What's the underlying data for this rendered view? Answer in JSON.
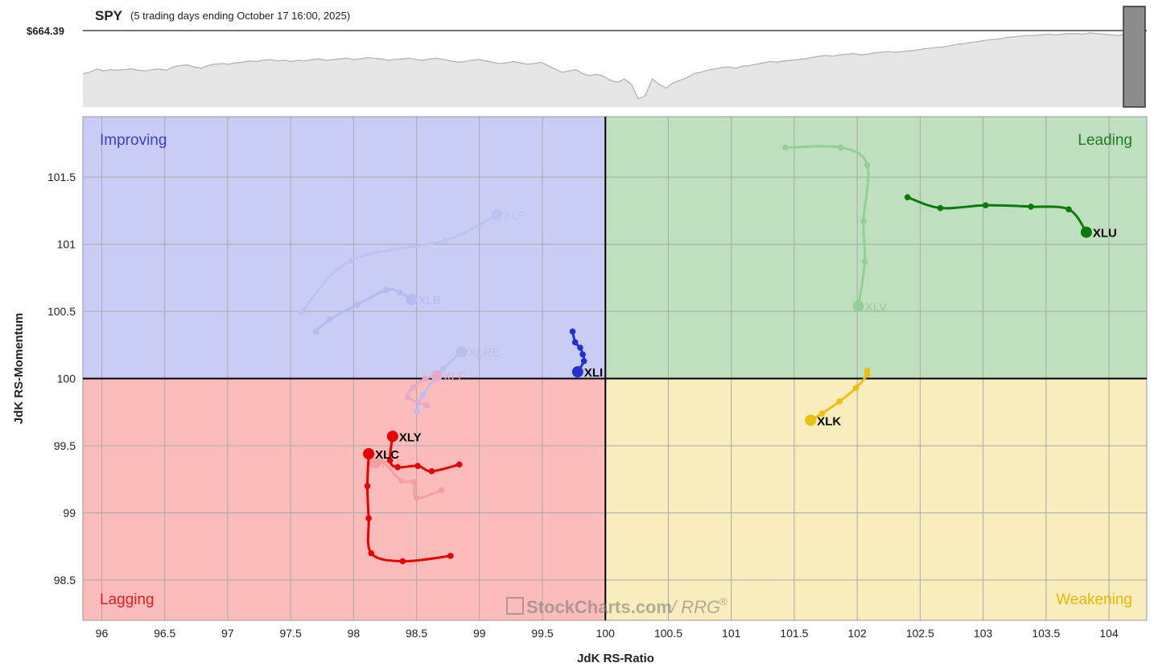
{
  "header": {
    "symbol": "SPY",
    "subtitle": "(5 trading days ending October 17 16:00, 2025)",
    "price": "$664.39"
  },
  "quadrants": {
    "improving": "Improving",
    "leading": "Leading",
    "lagging": "Lagging",
    "weakening": "Weakening"
  },
  "watermark": {
    "brand": "StockCharts.com",
    "suffix": "/ RRG",
    "reg": "®"
  },
  "colors": {
    "improving_bg": "#c9cdf5",
    "leading_bg": "#bfe0bf",
    "lagging_bg": "#fcbcbc",
    "weakening_bg": "#f9edbd",
    "spy_area": "#e6e6e6",
    "spy_line": "#b4b4b4"
  },
  "chart_data": {
    "type": "scatter",
    "title": "",
    "xlabel": "JdK RS-Ratio",
    "ylabel": "JdK RS-Momentum",
    "xlim": [
      95.85,
      104.3
    ],
    "ylim": [
      98.2,
      101.95
    ],
    "xticks": [
      "96",
      "96.5",
      "97",
      "97.5",
      "98",
      "98.5",
      "99",
      "99.5",
      "100",
      "100.5",
      "101",
      "101.5",
      "102",
      "102.5",
      "103",
      "103.5",
      "104"
    ],
    "yticks": [
      "98.5",
      "99",
      "99.5",
      "100",
      "100.5",
      "101",
      "101.5"
    ],
    "grid": true,
    "center": [
      100,
      100
    ],
    "series": [
      {
        "name": "XLP",
        "color": "#bcc2f1",
        "faded": true,
        "points": [
          [
            97.58,
            100.49
          ],
          [
            97.98,
            100.88
          ],
          [
            98.73,
            101.03
          ],
          [
            99.14,
            101.22
          ]
        ]
      },
      {
        "name": "XLB",
        "color": "#b5bbf0",
        "faded": true,
        "points": [
          [
            97.7,
            100.35
          ],
          [
            97.81,
            100.44
          ],
          [
            98.03,
            100.55
          ],
          [
            98.26,
            100.66
          ],
          [
            98.37,
            100.64
          ],
          [
            98.46,
            100.59
          ]
        ]
      },
      {
        "name": "XLRE",
        "color": "#b9bff1",
        "faded": true,
        "points": [
          [
            98.5,
            99.76
          ],
          [
            98.55,
            99.88
          ],
          [
            98.71,
            100.07
          ],
          [
            98.86,
            100.2
          ]
        ]
      },
      {
        "name": "XLF",
        "color": "#e6a9c7",
        "faded": true,
        "points": [
          [
            98.58,
            99.8
          ],
          [
            98.43,
            99.86
          ],
          [
            98.47,
            99.93
          ],
          [
            98.57,
            100.0
          ],
          [
            98.66,
            100.02
          ]
        ]
      },
      {
        "name": "XLV",
        "color": "#94cf94",
        "faded": true,
        "points": [
          [
            101.43,
            101.72
          ],
          [
            101.87,
            101.72
          ],
          [
            102.08,
            101.59
          ],
          [
            102.05,
            101.17
          ],
          [
            102.06,
            100.87
          ],
          [
            102.01,
            100.54
          ]
        ]
      },
      {
        "name": "XLE",
        "color": "#f5a0a0",
        "faded": true,
        "points": [
          [
            98.7,
            99.17
          ],
          [
            98.5,
            99.11
          ],
          [
            98.48,
            99.23
          ],
          [
            98.38,
            99.24
          ],
          [
            98.23,
            99.38
          ],
          [
            98.17,
            99.37
          ]
        ]
      },
      {
        "name": "XLI",
        "color": "#2330d0",
        "faded": false,
        "points": [
          [
            99.74,
            100.35
          ],
          [
            99.76,
            100.27
          ],
          [
            99.8,
            100.23
          ],
          [
            99.82,
            100.18
          ],
          [
            99.83,
            100.13
          ],
          [
            99.78,
            100.05
          ]
        ]
      },
      {
        "name": "XLU",
        "color": "#0a7a0a",
        "faded": false,
        "points": [
          [
            102.4,
            101.35
          ],
          [
            102.66,
            101.27
          ],
          [
            103.02,
            101.29
          ],
          [
            103.38,
            101.28
          ],
          [
            103.68,
            101.26
          ],
          [
            103.82,
            101.09
          ]
        ]
      },
      {
        "name": "XLK",
        "color": "#ecc00e",
        "faded": false,
        "points": [
          [
            102.08,
            100.06
          ],
          [
            102.08,
            100.03
          ],
          [
            101.99,
            99.93
          ],
          [
            101.86,
            99.83
          ],
          [
            101.72,
            99.74
          ],
          [
            101.63,
            99.69
          ]
        ]
      },
      {
        "name": "XLY",
        "color": "#e80000",
        "faded": false,
        "points": [
          [
            98.84,
            99.36
          ],
          [
            98.62,
            99.31
          ],
          [
            98.51,
            99.35
          ],
          [
            98.35,
            99.34
          ],
          [
            98.29,
            99.39
          ],
          [
            98.31,
            99.57
          ]
        ]
      },
      {
        "name": "XLC",
        "color": "#e80000",
        "faded": false,
        "points": [
          [
            98.77,
            98.68
          ],
          [
            98.39,
            98.64
          ],
          [
            98.14,
            98.7
          ],
          [
            98.12,
            98.96
          ],
          [
            98.11,
            99.2
          ],
          [
            98.12,
            99.44
          ]
        ]
      }
    ],
    "spy_price": {
      "label": "$664.39",
      "values": [
        0.62,
        0.6,
        0.55,
        0.58,
        0.56,
        0.57,
        0.56,
        0.55,
        0.57,
        0.58,
        0.56,
        0.55,
        0.57,
        0.52,
        0.5,
        0.49,
        0.52,
        0.54,
        0.5,
        0.48,
        0.47,
        0.48,
        0.46,
        0.45,
        0.43,
        0.44,
        0.42,
        0.41,
        0.43,
        0.42,
        0.44,
        0.42,
        0.43,
        0.41,
        0.4,
        0.42,
        0.41,
        0.4,
        0.39,
        0.41,
        0.4,
        0.38,
        0.39,
        0.4,
        0.42,
        0.41,
        0.4,
        0.39,
        0.41,
        0.42,
        0.4,
        0.39,
        0.41,
        0.43,
        0.45,
        0.44,
        0.42,
        0.41,
        0.43,
        0.45,
        0.47,
        0.46,
        0.44,
        0.46,
        0.48,
        0.47,
        0.45,
        0.5,
        0.55,
        0.6,
        0.58,
        0.56,
        0.62,
        0.65,
        0.63,
        0.66,
        0.72,
        0.75,
        0.7,
        0.78,
        1.0,
        0.95,
        0.7,
        0.78,
        0.84,
        0.76,
        0.72,
        0.68,
        0.62,
        0.6,
        0.57,
        0.55,
        0.53,
        0.52,
        0.54,
        0.51,
        0.5,
        0.48,
        0.46,
        0.44,
        0.45,
        0.43,
        0.42,
        0.41,
        0.4,
        0.38,
        0.36,
        0.35,
        0.36,
        0.34,
        0.33,
        0.32,
        0.34,
        0.33,
        0.31,
        0.3,
        0.29,
        0.3,
        0.29,
        0.28,
        0.27,
        0.25,
        0.24,
        0.23,
        0.22,
        0.2,
        0.18,
        0.17,
        0.15,
        0.14,
        0.12,
        0.11,
        0.1,
        0.08,
        0.07,
        0.06,
        0.05,
        0.05,
        0.04,
        0.03,
        0.04,
        0.03,
        0.02,
        0.02,
        0.03,
        0.01,
        0.02,
        0.03,
        0.04,
        0.05,
        0.04,
        0.05,
        0.04,
        0.04
      ]
    }
  }
}
